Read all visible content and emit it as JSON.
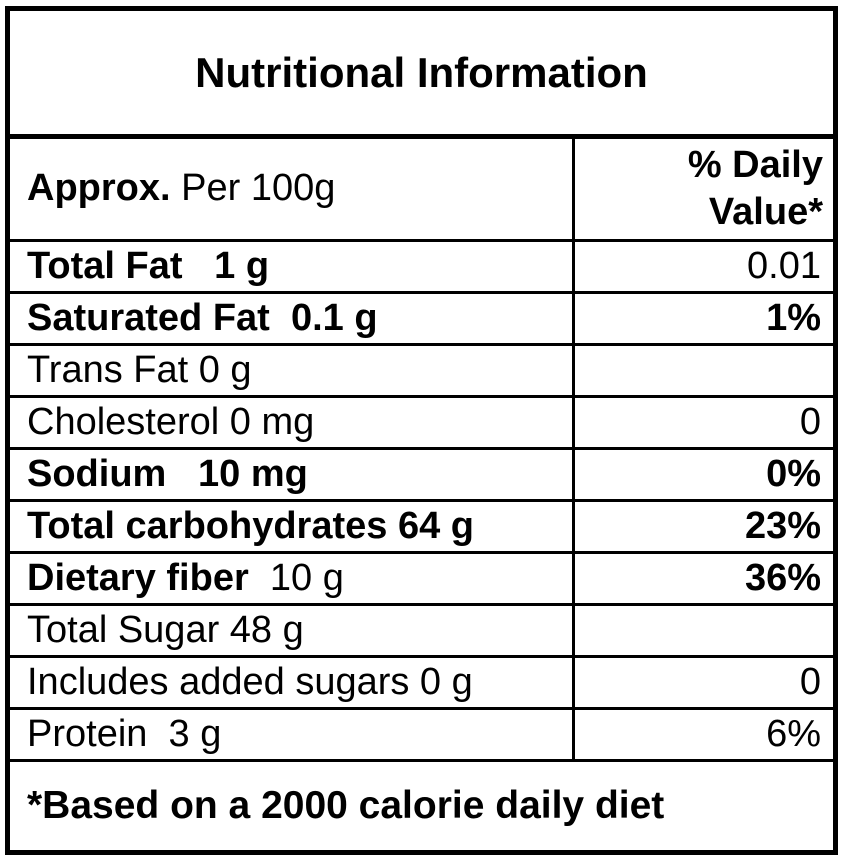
{
  "title": "Nutritional Information",
  "header": {
    "label_strong": "Approx.",
    "label_plain": " Per 100g",
    "value": "% Daily Value*"
  },
  "columns": [
    "Approx. Per 100g",
    "% Daily Value*"
  ],
  "rows": [
    {
      "label_strong": "Total Fat   1 g",
      "label_plain": "",
      "value": "0.01"
    },
    {
      "label_strong": "Saturated Fat  0.1 g",
      "label_plain": "",
      "value": "1%"
    },
    {
      "label_strong": "",
      "label_plain": "Trans Fat 0 g",
      "value": ""
    },
    {
      "label_strong": "",
      "label_plain": "Cholesterol 0 mg",
      "value": "0"
    },
    {
      "label_strong": "Sodium   10 mg",
      "label_plain": "",
      "value": "0%"
    },
    {
      "label_strong": "Total carbohydrates 64 g",
      "label_plain": "",
      "value": "23%"
    },
    {
      "label_strong": "Dietary fiber",
      "label_plain": "  10 g",
      "value": "36%"
    },
    {
      "label_strong": "",
      "label_plain": "Total Sugar 48 g",
      "value": ""
    },
    {
      "label_strong": "",
      "label_plain": "Includes added sugars 0 g",
      "value": "0"
    },
    {
      "label_strong": "",
      "label_plain": "Protein  3 g",
      "value": "6%"
    }
  ],
  "footnote": "*Based on a 2000 calorie daily diet",
  "colors": {
    "border": "#000000",
    "text": "#000000",
    "background": "#ffffff"
  }
}
